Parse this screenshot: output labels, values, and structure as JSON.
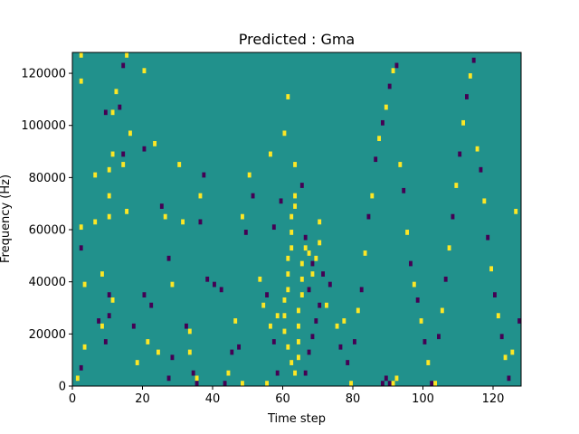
{
  "chart_data": {
    "type": "heatmap",
    "title": "Predicted : Gma",
    "xlabel": "Time step",
    "ylabel": "Frequency (Hz)",
    "xlim": [
      0,
      128
    ],
    "ylim": [
      0,
      128000
    ],
    "grid": false,
    "legend": "none",
    "x_ticks": [
      0,
      20,
      40,
      60,
      80,
      100,
      120
    ],
    "x_tick_labels": [
      "0",
      "20",
      "40",
      "60",
      "80",
      "100",
      "120"
    ],
    "y_ticks": [
      0,
      20000,
      40000,
      60000,
      80000,
      100000,
      120000
    ],
    "y_tick_labels": [
      "0",
      "20000",
      "40000",
      "60000",
      "80000",
      "100000",
      "120000"
    ],
    "colormap": {
      "background_value": 0,
      "low_value": -1,
      "high_value": 1,
      "colors": {
        "-1": "#440154",
        "0": "#21918c",
        "1": "#fde725"
      }
    },
    "background_color": "#21918c",
    "cell_height_hz": 2000,
    "bin_width_steps": 1,
    "cells": [
      [
        1,
        2000,
        1
      ],
      [
        2,
        6000,
        -1
      ],
      [
        3,
        14000,
        1
      ],
      [
        3,
        38000,
        1
      ],
      [
        2,
        52000,
        -1
      ],
      [
        2,
        60000,
        1
      ],
      [
        6,
        62000,
        1
      ],
      [
        6,
        80000,
        1
      ],
      [
        2,
        116000,
        1
      ],
      [
        2,
        126000,
        1
      ],
      [
        7,
        24000,
        -1
      ],
      [
        8,
        22000,
        1
      ],
      [
        9,
        16000,
        -1
      ],
      [
        10,
        26000,
        -1
      ],
      [
        10,
        34000,
        -1
      ],
      [
        8,
        42000,
        1
      ],
      [
        10,
        82000,
        1
      ],
      [
        10,
        72000,
        1
      ],
      [
        10,
        64000,
        1
      ],
      [
        9,
        104000,
        -1
      ],
      [
        11,
        104000,
        1
      ],
      [
        12,
        112000,
        1
      ],
      [
        11,
        32000,
        1
      ],
      [
        11,
        88000,
        1
      ],
      [
        14,
        88000,
        -1
      ],
      [
        16,
        96000,
        1
      ],
      [
        14,
        122000,
        -1
      ],
      [
        15,
        126000,
        1
      ],
      [
        13,
        106000,
        -1
      ],
      [
        14,
        84000,
        1
      ],
      [
        15,
        66000,
        1
      ],
      [
        17,
        22000,
        -1
      ],
      [
        18,
        8000,
        1
      ],
      [
        20,
        34000,
        -1
      ],
      [
        21,
        16000,
        1
      ],
      [
        23,
        92000,
        1
      ],
      [
        20,
        90000,
        -1
      ],
      [
        20,
        120000,
        1
      ],
      [
        22,
        30000,
        -1
      ],
      [
        24,
        12000,
        1
      ],
      [
        25,
        68000,
        -1
      ],
      [
        26,
        64000,
        1
      ],
      [
        27,
        2000,
        -1
      ],
      [
        28,
        10000,
        -1
      ],
      [
        27,
        48000,
        -1
      ],
      [
        28,
        38000,
        1
      ],
      [
        30,
        84000,
        1
      ],
      [
        31,
        62000,
        1
      ],
      [
        32,
        22000,
        -1
      ],
      [
        33,
        12000,
        1
      ],
      [
        33,
        20000,
        1
      ],
      [
        34,
        4000,
        -1
      ],
      [
        35,
        2000,
        1
      ],
      [
        36,
        62000,
        -1
      ],
      [
        37,
        80000,
        -1
      ],
      [
        35,
        0,
        -1
      ],
      [
        36,
        72000,
        1
      ],
      [
        38,
        40000,
        -1
      ],
      [
        40,
        38000,
        -1
      ],
      [
        42,
        36000,
        -1
      ],
      [
        43,
        0,
        -1
      ],
      [
        44,
        4000,
        1
      ],
      [
        45,
        12000,
        -1
      ],
      [
        46,
        24000,
        1
      ],
      [
        47,
        14000,
        -1
      ],
      [
        48,
        0,
        1
      ],
      [
        48,
        64000,
        1
      ],
      [
        49,
        58000,
        -1
      ],
      [
        50,
        80000,
        1
      ],
      [
        51,
        72000,
        -1
      ],
      [
        53,
        40000,
        1
      ],
      [
        54,
        30000,
        1
      ],
      [
        55,
        34000,
        -1
      ],
      [
        56,
        22000,
        1
      ],
      [
        57,
        16000,
        -1
      ],
      [
        58,
        26000,
        1
      ],
      [
        55,
        0,
        1
      ],
      [
        56,
        88000,
        1
      ],
      [
        57,
        60000,
        -1
      ],
      [
        58,
        4000,
        -1
      ],
      [
        59,
        70000,
        -1
      ],
      [
        60,
        96000,
        1
      ],
      [
        61,
        110000,
        1
      ],
      [
        63,
        84000,
        1
      ],
      [
        65,
        76000,
        -1
      ],
      [
        66,
        56000,
        -1
      ],
      [
        67,
        50000,
        1
      ],
      [
        68,
        46000,
        -1
      ],
      [
        70,
        62000,
        1
      ],
      [
        71,
        42000,
        -1
      ],
      [
        72,
        30000,
        1
      ],
      [
        73,
        38000,
        -1
      ],
      [
        75,
        22000,
        1
      ],
      [
        76,
        14000,
        -1
      ],
      [
        77,
        24000,
        1
      ],
      [
        78,
        8000,
        -1
      ],
      [
        79,
        0,
        1
      ],
      [
        80,
        16000,
        -1
      ],
      [
        81,
        28000,
        1
      ],
      [
        82,
        36000,
        -1
      ],
      [
        83,
        50000,
        1
      ],
      [
        84,
        64000,
        -1
      ],
      [
        85,
        72000,
        1
      ],
      [
        86,
        86000,
        -1
      ],
      [
        87,
        94000,
        1
      ],
      [
        88,
        100000,
        -1
      ],
      [
        89,
        106000,
        1
      ],
      [
        90,
        114000,
        -1
      ],
      [
        91,
        120000,
        1
      ],
      [
        92,
        122000,
        -1
      ],
      [
        93,
        84000,
        1
      ],
      [
        94,
        74000,
        -1
      ],
      [
        95,
        58000,
        1
      ],
      [
        96,
        46000,
        -1
      ],
      [
        97,
        38000,
        1
      ],
      [
        98,
        32000,
        -1
      ],
      [
        99,
        24000,
        1
      ],
      [
        100,
        16000,
        -1
      ],
      [
        101,
        8000,
        1
      ],
      [
        102,
        0,
        -1
      ],
      [
        103,
        0,
        1
      ],
      [
        104,
        18000,
        -1
      ],
      [
        105,
        28000,
        1
      ],
      [
        106,
        40000,
        -1
      ],
      [
        107,
        52000,
        1
      ],
      [
        108,
        64000,
        -1
      ],
      [
        109,
        76000,
        1
      ],
      [
        110,
        88000,
        -1
      ],
      [
        111,
        100000,
        1
      ],
      [
        112,
        110000,
        -1
      ],
      [
        113,
        118000,
        1
      ],
      [
        114,
        124000,
        -1
      ],
      [
        115,
        90000,
        1
      ],
      [
        116,
        82000,
        -1
      ],
      [
        117,
        70000,
        1
      ],
      [
        118,
        56000,
        -1
      ],
      [
        119,
        44000,
        1
      ],
      [
        120,
        34000,
        -1
      ],
      [
        121,
        26000,
        1
      ],
      [
        122,
        18000,
        -1
      ],
      [
        123,
        10000,
        1
      ],
      [
        124,
        2000,
        -1
      ],
      [
        125,
        12000,
        1
      ],
      [
        126,
        66000,
        1
      ],
      [
        127,
        24000,
        -1
      ],
      [
        60,
        20000,
        1
      ],
      [
        60,
        26000,
        1
      ],
      [
        60,
        32000,
        1
      ],
      [
        61,
        36000,
        1
      ],
      [
        61,
        42000,
        1
      ],
      [
        61,
        48000,
        1
      ],
      [
        62,
        52000,
        1
      ],
      [
        62,
        58000,
        1
      ],
      [
        62,
        64000,
        1
      ],
      [
        63,
        68000,
        1
      ],
      [
        63,
        72000,
        1
      ],
      [
        61,
        14000,
        1
      ],
      [
        62,
        8000,
        1
      ],
      [
        63,
        4000,
        1
      ],
      [
        64,
        10000,
        1
      ],
      [
        64,
        16000,
        1
      ],
      [
        64,
        22000,
        1
      ],
      [
        64,
        28000,
        1
      ],
      [
        65,
        34000,
        1
      ],
      [
        65,
        40000,
        1
      ],
      [
        65,
        46000,
        1
      ],
      [
        66,
        4000,
        -1
      ],
      [
        67,
        12000,
        -1
      ],
      [
        68,
        18000,
        -1
      ],
      [
        69,
        24000,
        -1
      ],
      [
        70,
        30000,
        -1
      ],
      [
        66,
        52000,
        1
      ],
      [
        67,
        36000,
        -1
      ],
      [
        68,
        42000,
        1
      ],
      [
        69,
        48000,
        1
      ],
      [
        70,
        54000,
        1
      ],
      [
        88,
        0,
        -1
      ],
      [
        89,
        2000,
        -1
      ],
      [
        90,
        0,
        -1
      ],
      [
        91,
        0,
        1
      ],
      [
        92,
        2000,
        1
      ]
    ]
  }
}
